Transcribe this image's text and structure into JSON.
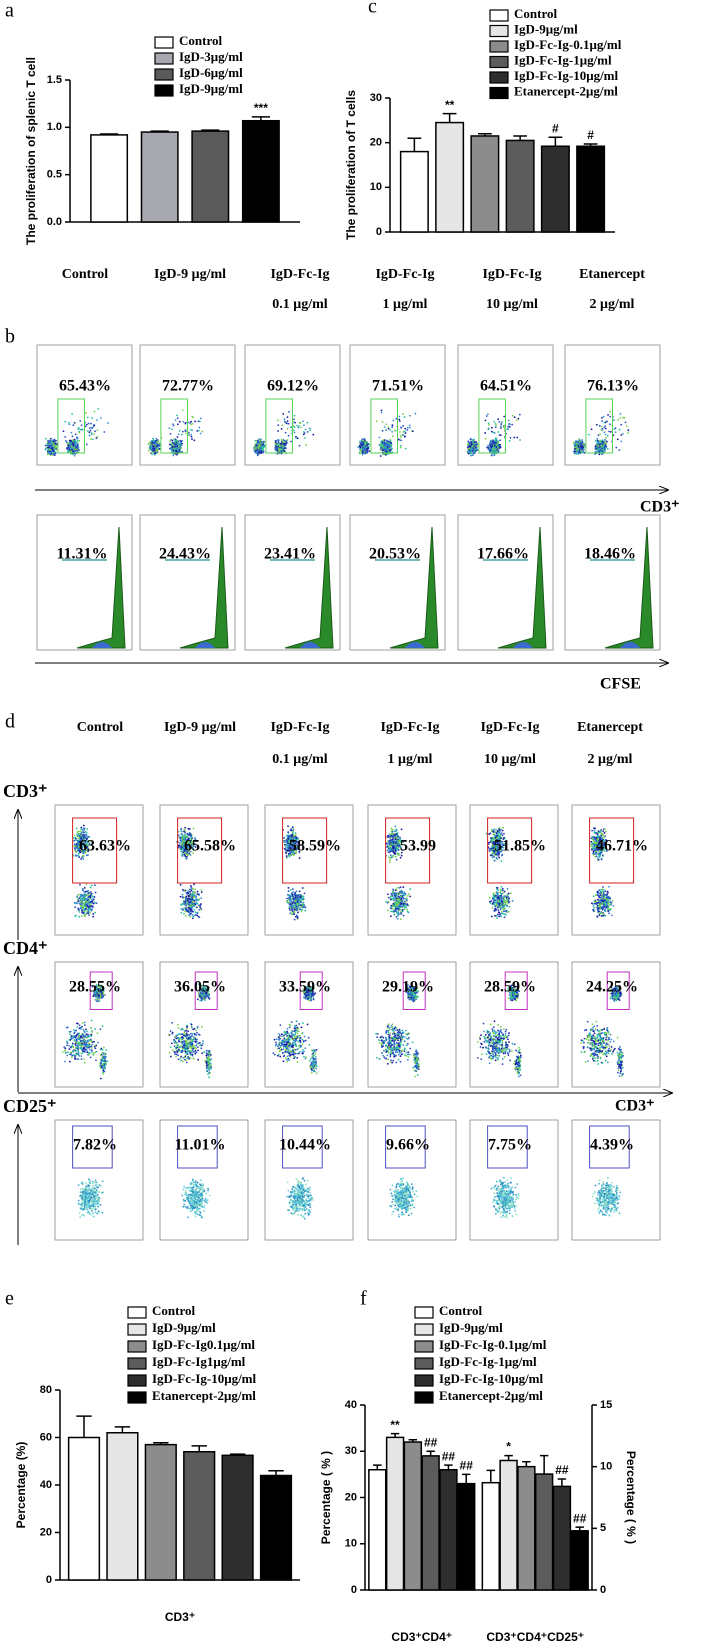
{
  "chart_data": [
    {
      "type": "bar",
      "panel": "a",
      "ylabel": "The proliferation of splenic T cell",
      "ylim": [
        0,
        1.5
      ],
      "yticks": [
        {
          "value": 0,
          "label": "0.0"
        },
        0.5,
        {
          "value": 1,
          "label": "1.0"
        },
        1.5
      ],
      "series": [
        {
          "name": "Control",
          "color": "#ffffff",
          "values": [
            0.92
          ],
          "errors": [
            0.01
          ],
          "annotations": [
            null
          ]
        },
        {
          "name": "IgD-3μg/ml",
          "color": "#a8a8b0",
          "values": [
            0.95
          ],
          "errors": [
            0.01
          ],
          "annotations": [
            null
          ]
        },
        {
          "name": "IgD-6μg/ml",
          "color": "#5a5a5a",
          "values": [
            0.96
          ],
          "errors": [
            0.01
          ],
          "annotations": [
            null
          ]
        },
        {
          "name": "IgD-9μg/ml",
          "color": "#000000",
          "values": [
            1.07
          ],
          "errors": [
            0.04
          ],
          "annotations": [
            "***"
          ]
        }
      ]
    },
    {
      "type": "bar",
      "panel": "c",
      "ylabel": "The proliferation of T cells",
      "ylim": [
        0,
        30
      ],
      "yticks": [
        0,
        10,
        20,
        30
      ],
      "series": [
        {
          "name": "Control",
          "color": "#ffffff",
          "values": [
            18
          ],
          "errors": [
            3
          ],
          "annotations": [
            null
          ]
        },
        {
          "name": "IgD-9μg/ml",
          "color": "#e6e6e6",
          "values": [
            24.5
          ],
          "errors": [
            2
          ],
          "annotations": [
            "**"
          ]
        },
        {
          "name": "IgD-Fc-Ig-0.1μg/ml",
          "color": "#8c8c8c",
          "values": [
            21.5
          ],
          "errors": [
            0.5
          ],
          "annotations": [
            null
          ]
        },
        {
          "name": "IgD-Fc-Ig-1μg/ml",
          "color": "#5c5c5c",
          "values": [
            20.5
          ],
          "errors": [
            1
          ],
          "annotations": [
            null
          ]
        },
        {
          "name": "IgD-Fc-Ig-10μg/ml",
          "color": "#2e2e2e",
          "values": [
            19.2
          ],
          "errors": [
            2
          ],
          "annotations": [
            "#"
          ]
        },
        {
          "name": "Etanercept-2μg/ml",
          "color": "#000000",
          "values": [
            19.2
          ],
          "errors": [
            0.5
          ],
          "annotations": [
            "#"
          ]
        }
      ]
    },
    {
      "type": "bar",
      "panel": "e",
      "ylabel": "Percentage (%)",
      "ylim": [
        0,
        80
      ],
      "yticks": [
        0,
        20,
        40,
        60,
        80
      ],
      "categories": [
        "CD3⁺"
      ],
      "series": [
        {
          "name": "Control",
          "color": "#ffffff",
          "values": [
            60
          ],
          "errors": [
            9
          ],
          "annotations": [
            null
          ]
        },
        {
          "name": "IgD-9μg/ml",
          "color": "#e6e6e6",
          "values": [
            62
          ],
          "errors": [
            2.5
          ],
          "annotations": [
            null
          ]
        },
        {
          "name": "IgD-Fc-Ig0.1μg/ml",
          "color": "#8c8c8c",
          "values": [
            57
          ],
          "errors": [
            0.8
          ],
          "annotations": [
            null
          ]
        },
        {
          "name": "IgD-Fc-Ig1μg/ml",
          "color": "#5c5c5c",
          "values": [
            54
          ],
          "errors": [
            2.5
          ],
          "annotations": [
            null
          ]
        },
        {
          "name": "IgD-Fc-Ig-10μg/ml",
          "color": "#2e2e2e",
          "values": [
            52.5
          ],
          "errors": [
            0.5
          ],
          "annotations": [
            null
          ]
        },
        {
          "name": "Etanercept-2μg/ml",
          "color": "#000000",
          "values": [
            44
          ],
          "errors": [
            2
          ],
          "annotations": [
            null
          ]
        }
      ]
    },
    {
      "type": "bar",
      "panel": "f",
      "ylabel": "Percentage ( % )",
      "y2label": "Percentage ( % )",
      "ylim": [
        0,
        40
      ],
      "yticks": [
        0,
        10,
        20,
        30,
        40
      ],
      "y2lim": [
        0,
        15
      ],
      "y2ticks": [
        0,
        5,
        10,
        15
      ],
      "categories": [
        "CD3⁺CD4⁺",
        "CD3⁺CD4⁺CD25⁺"
      ],
      "category_axes": [
        "y",
        "y2"
      ],
      "series": [
        {
          "name": "Control",
          "color": "#ffffff",
          "values": [
            26,
            8.7
          ],
          "errors": [
            1,
            1
          ],
          "annotations": [
            null,
            null
          ]
        },
        {
          "name": "IgD-9μg/ml",
          "color": "#e6e6e6",
          "values": [
            33,
            10.5
          ],
          "errors": [
            0.8,
            0.4
          ],
          "annotations": [
            "**",
            "*"
          ]
        },
        {
          "name": "IgD-Fc-Ig-0.1μg/ml",
          "color": "#8c8c8c",
          "values": [
            32,
            10
          ],
          "errors": [
            0.5,
            0.4
          ],
          "annotations": [
            null,
            null
          ]
        },
        {
          "name": "IgD-Fc-Ig-1μg/ml",
          "color": "#5c5c5c",
          "values": [
            29,
            9.4
          ],
          "errors": [
            1,
            1.5
          ],
          "annotations": [
            "##",
            null
          ]
        },
        {
          "name": "IgD-Fc-Ig-10μg/ml",
          "color": "#2e2e2e",
          "values": [
            26,
            8.4
          ],
          "errors": [
            1,
            0.6
          ],
          "annotations": [
            "##",
            "##"
          ]
        },
        {
          "name": "Etanercept-2μg/ml",
          "color": "#000000",
          "values": [
            23,
            4.8
          ],
          "errors": [
            2,
            0.3
          ],
          "annotations": [
            "##",
            "##"
          ]
        }
      ]
    }
  ],
  "panel_b": {
    "panel": "b",
    "columns": [
      {
        "line1": "Control"
      },
      {
        "line1": "IgD-9 μg/ml"
      },
      {
        "line1": "IgD-Fc-Ig",
        "line2": "0.1 μg/ml"
      },
      {
        "line1": "IgD-Fc-Ig",
        "line2": "1 μg/ml"
      },
      {
        "line1": "IgD-Fc-Ig",
        "line2": "10 μg/ml"
      },
      {
        "line1": "Etanercept",
        "line2": "2 μg/ml"
      }
    ],
    "rows": [
      {
        "kind": "dot",
        "axis_label": "CD3⁺",
        "percentages": [
          "65.43%",
          "72.77%",
          "69.12%",
          "71.51%",
          "64.51%",
          "76.13%"
        ]
      },
      {
        "kind": "histogram",
        "axis_label": "CFSE",
        "percentages": [
          "11.31%",
          "24.43%",
          "23.41%",
          "20.53%",
          "17.66%",
          "18.46%"
        ]
      }
    ]
  },
  "panel_d": {
    "panel": "d",
    "columns": [
      {
        "line1": "Control"
      },
      {
        "line1": "IgD-9 μg/ml"
      },
      {
        "line1": "IgD-Fc-Ig",
        "line2": "0.1 μg/ml"
      },
      {
        "line1": "IgD-Fc-Ig",
        "line2": "1 μg/ml"
      },
      {
        "line1": "IgD-Fc-Ig",
        "line2": "10 μg/ml"
      },
      {
        "line1": "Etanercept",
        "line2": "2 μg/ml"
      }
    ],
    "rows": [
      {
        "row_label": "CD3⁺",
        "percentages": [
          "63.63%",
          "65.58%",
          "58.59%",
          "53.99",
          "51.85%",
          "46.71%"
        ]
      },
      {
        "row_label": "CD4⁺",
        "axis_label": "CD3⁺",
        "percentages": [
          "28.55%",
          "36.05%",
          "33.59%",
          "29.19%",
          "28.59%",
          "24.25%"
        ]
      },
      {
        "row_label": "CD25⁺",
        "percentages": [
          "7.82%",
          "11.01%",
          "10.44%",
          "9.66%",
          "7.75%",
          "4.39%"
        ]
      }
    ]
  }
}
